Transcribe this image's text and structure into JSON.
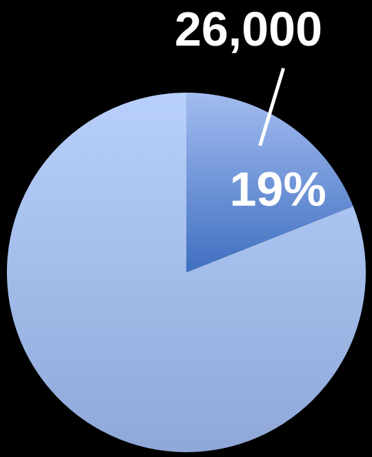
{
  "chart_data": {
    "type": "pie",
    "title": "",
    "slices": [
      {
        "percent": 19,
        "percent_label": "19%",
        "value_label": "26,000",
        "color": "#3f6fc0",
        "color_light": "#a3bcf0"
      },
      {
        "percent": 81,
        "color": "#b8d0fb",
        "color_light": "#8fa8d8"
      }
    ],
    "start_angle_deg": 0,
    "direction": "clockwise"
  },
  "colors": {
    "background": "#000000",
    "label": "#ffffff",
    "leader_line": "#ffffff"
  }
}
